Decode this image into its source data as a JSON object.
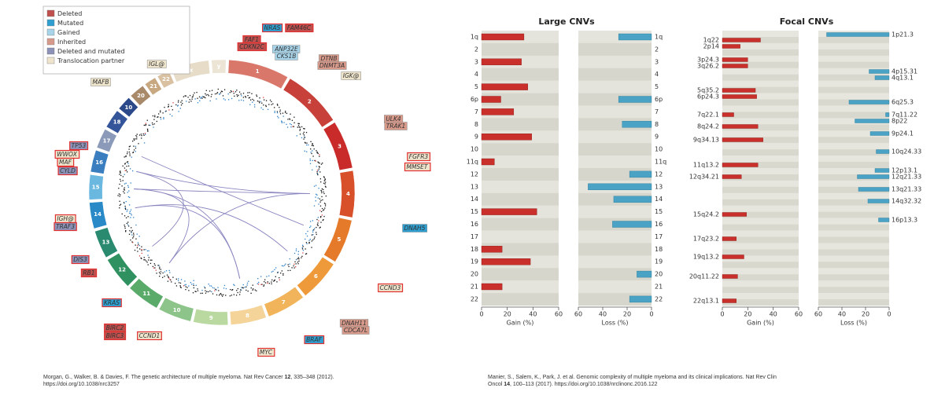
{
  "circos": {
    "legend": [
      {
        "label": "Deleted",
        "color": "#c0504d"
      },
      {
        "label": "Mutated",
        "color": "#2e9fd0"
      },
      {
        "label": "Gained",
        "color": "#a8d4ea"
      },
      {
        "label": "Inherited",
        "color": "#d7998a"
      },
      {
        "label": "Deleted and mutated",
        "color": "#8d93b8"
      },
      {
        "label": "Translocation partner",
        "color": "#efe5cc"
      }
    ],
    "chromosomes": [
      {
        "name": "1",
        "color": "#d9786a"
      },
      {
        "name": "2",
        "color": "#c8403a"
      },
      {
        "name": "3",
        "color": "#c92a2a"
      },
      {
        "name": "4",
        "color": "#d8502a"
      },
      {
        "name": "5",
        "color": "#e57a2a"
      },
      {
        "name": "6",
        "color": "#ef9a3a"
      },
      {
        "name": "7",
        "color": "#f2b45a"
      },
      {
        "name": "8",
        "color": "#f5d49a"
      },
      {
        "name": "9",
        "color": "#b9d9a0"
      },
      {
        "name": "10",
        "color": "#8cc48a"
      },
      {
        "name": "11",
        "color": "#5aaa6a"
      },
      {
        "name": "12",
        "color": "#2f9060"
      },
      {
        "name": "13",
        "color": "#2a8a70"
      },
      {
        "name": "14",
        "color": "#2a8ac8"
      },
      {
        "name": "15",
        "color": "#6ab8e0"
      },
      {
        "name": "16",
        "color": "#3a7ec0"
      },
      {
        "name": "17",
        "color": "#8a9ab8"
      },
      {
        "name": "18",
        "color": "#34559a"
      },
      {
        "name": "10",
        "color": "#2c4a8a"
      },
      {
        "name": "20",
        "color": "#a88a6a"
      },
      {
        "name": "21",
        "color": "#c8a880"
      },
      {
        "name": "22",
        "color": "#d8c0a0"
      },
      {
        "name": "x",
        "color": "#e6dcc8"
      },
      {
        "name": "y",
        "color": "#ece4d4"
      }
    ],
    "genes": [
      {
        "label": "NRAS",
        "color": "#2e9fd0"
      },
      {
        "label": "FAM46C",
        "color": "#c0504d"
      },
      {
        "label": "FAF1",
        "color": "#c0504d"
      },
      {
        "label": "CDKN2C",
        "color": "#c0504d"
      },
      {
        "label": "ANP32E",
        "color": "#a8d4ea"
      },
      {
        "label": "CKS1B",
        "color": "#a8d4ea"
      },
      {
        "label": "DTNB",
        "color": "#d7998a"
      },
      {
        "label": "DNMT3A",
        "color": "#d7998a"
      },
      {
        "label": "IGK@",
        "color": "#efe5cc"
      },
      {
        "label": "ULK4",
        "color": "#d7998a"
      },
      {
        "label": "TRAK1",
        "color": "#d7998a"
      },
      {
        "label": "FGFR3",
        "color": "#efe5cc"
      },
      {
        "label": "MMSET",
        "color": "#efe5cc"
      },
      {
        "label": "DNAH5",
        "color": "#2e9fd0"
      },
      {
        "label": "CCND3",
        "color": "#efe5cc"
      },
      {
        "label": "DNAH11",
        "color": "#d7998a"
      },
      {
        "label": "CDCA7L",
        "color": "#d7998a"
      },
      {
        "label": "BRAF",
        "color": "#2e9fd0"
      },
      {
        "label": "MYC",
        "color": "#efe5cc"
      },
      {
        "label": "CCND1",
        "color": "#efe5cc"
      },
      {
        "label": "BIRC2",
        "color": "#c0504d"
      },
      {
        "label": "BIRC3",
        "color": "#c0504d"
      },
      {
        "label": "KRAS",
        "color": "#2e9fd0"
      },
      {
        "label": "RB1",
        "color": "#c0504d"
      },
      {
        "label": "DIS3",
        "color": "#8d93b8"
      },
      {
        "label": "IGH@",
        "color": "#efe5cc"
      },
      {
        "label": "TRAF3",
        "color": "#8d93b8"
      },
      {
        "label": "WWOX",
        "color": "#efe5cc"
      },
      {
        "label": "MAF",
        "color": "#efe5cc"
      },
      {
        "label": "CYLD",
        "color": "#8d93b8"
      },
      {
        "label": "TP53",
        "color": "#8d93b8"
      },
      {
        "label": "MAFB",
        "color": "#efe5cc"
      },
      {
        "label": "IGL@",
        "color": "#efe5cc"
      }
    ]
  },
  "chart_data": [
    {
      "type": "bar",
      "orientation": "horizontal",
      "title": "Large CNVs",
      "xlabel": "Gain (%)",
      "color": "#c9302c",
      "categories": [
        "1q",
        "2",
        "3",
        "4",
        "5",
        "6p",
        "7",
        "8",
        "9",
        "10",
        "11q",
        "12",
        "13",
        "14",
        "15",
        "16",
        "17",
        "18",
        "19",
        "20",
        "21",
        "22"
      ],
      "values": [
        33,
        0,
        31,
        0,
        36,
        15,
        25,
        0,
        39,
        0,
        10,
        0,
        0,
        0,
        43,
        0,
        0,
        16,
        38,
        0,
        16,
        0
      ],
      "xlim": [
        0,
        60
      ],
      "xticks": [
        0,
        20,
        40,
        60
      ]
    },
    {
      "type": "bar",
      "orientation": "horizontal",
      "xlabel": "Loss (%)",
      "color": "#4aa3c4",
      "categories": [
        "1q",
        "2",
        "3",
        "4",
        "5",
        "6p",
        "7",
        "8",
        "9",
        "10",
        "11q",
        "12",
        "13",
        "14",
        "15",
        "16",
        "17",
        "18",
        "19",
        "20",
        "21",
        "22"
      ],
      "values": [
        27,
        0,
        0,
        0,
        0,
        27,
        0,
        24,
        0,
        0,
        0,
        18,
        52,
        31,
        0,
        32,
        0,
        0,
        0,
        12,
        0,
        18
      ],
      "xlim": [
        60,
        0
      ],
      "xticks": [
        60,
        40,
        20,
        0
      ]
    },
    {
      "type": "bar",
      "orientation": "horizontal",
      "title": "Focal CNVs",
      "xlabel": "Gain (%)",
      "color": "#c9302c",
      "categories": [
        "1q22",
        "2p14",
        "3p24.3",
        "3q26.2",
        "5q35.2",
        "6p24.3",
        "7q22.1",
        "8q24.2",
        "9q34.13",
        "11q13.2",
        "12q34.21",
        "15q24.2",
        "17q23.2",
        "19q13.2",
        "20q11.22",
        "22q13.1"
      ],
      "values": [
        30,
        14,
        20,
        20,
        26,
        27,
        9,
        28,
        32,
        28,
        15,
        19,
        11,
        17,
        12,
        11
      ],
      "xlim": [
        0,
        60
      ],
      "xticks": [
        0,
        20,
        40,
        60
      ]
    },
    {
      "type": "bar",
      "orientation": "horizontal",
      "xlabel": "Loss (%)",
      "color": "#4aa3c4",
      "categories": [
        "1p21.3",
        "4p15.31",
        "4q13.1",
        "6q25.3",
        "7q11.22",
        "8p22",
        "9p24.1",
        "10q24.33",
        "12p13.1",
        "12q21.33",
        "13q21.33",
        "14q32.32",
        "16p13.3"
      ],
      "values": [
        53,
        17,
        12,
        34,
        3,
        29,
        16,
        11,
        12,
        27,
        26,
        18,
        9
      ],
      "xlim": [
        60,
        0
      ],
      "xticks": [
        60,
        40,
        20,
        0
      ]
    }
  ],
  "citations": [
    {
      "before": "Morgan, G., Walker, B. & Davies, F. The genetic architecture of multiple myeloma. Nat Rev Cancer",
      "bold": "12",
      "after": ", 335–348 (2012). https://doi.org/10.1038/nrc3257"
    },
    {
      "before": "Manier, S., Salem, K., Park, J. et al. Genomic complexity of multiple myeloma and its clinical implications. Nat Rev Clin Oncol",
      "bold": "14",
      "after": ", 100–113 (2017). https://doi.org/10.1038/nrclinonc.2016.122"
    }
  ]
}
